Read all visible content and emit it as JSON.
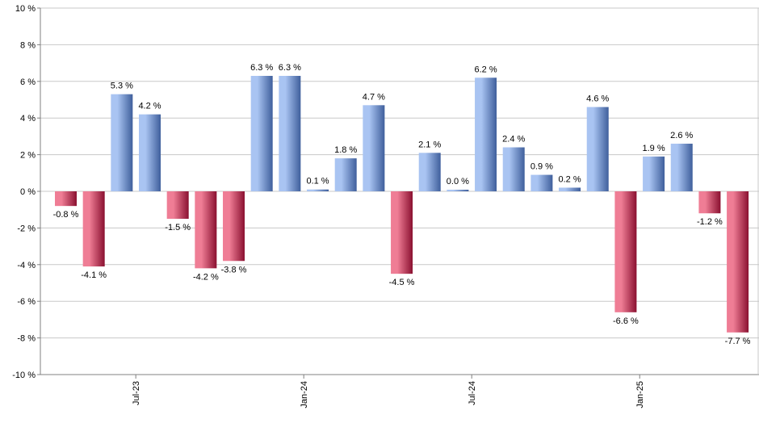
{
  "chart_data": {
    "type": "bar",
    "title": "",
    "xlabel": "",
    "ylabel": "",
    "ylim": [
      -10,
      10
    ],
    "y_ticks": [
      {
        "value": 10,
        "label": "10 %"
      },
      {
        "value": 8,
        "label": "8 %"
      },
      {
        "value": 6,
        "label": "6 %"
      },
      {
        "value": 4,
        "label": "4 %"
      },
      {
        "value": 2,
        "label": "2 %"
      },
      {
        "value": 0,
        "label": "0 %"
      },
      {
        "value": -2,
        "label": "-2 %"
      },
      {
        "value": -4,
        "label": "-4 %"
      },
      {
        "value": -6,
        "label": "-6 %"
      },
      {
        "value": -8,
        "label": "-8 %"
      },
      {
        "value": -10,
        "label": "-10 %"
      }
    ],
    "grid": true,
    "x_ticks": [
      {
        "label": "Jul-23",
        "at_index": 3
      },
      {
        "label": "Jan-24",
        "at_index": 9
      },
      {
        "label": "Jul-24",
        "at_index": 15
      },
      {
        "label": "Jan-25",
        "at_index": 21
      }
    ],
    "values": [
      -0.8,
      -4.1,
      5.3,
      4.2,
      -1.5,
      -4.2,
      -3.8,
      6.3,
      6.3,
      0.1,
      1.8,
      4.7,
      -4.5,
      2.1,
      0.0,
      6.2,
      2.4,
      0.9,
      0.2,
      4.6,
      -6.6,
      1.9,
      2.6,
      -1.2,
      -7.7
    ],
    "data_labels": [
      "-0.8 %",
      "-4.1 %",
      "5.3 %",
      "4.2 %",
      "-1.5 %",
      "-4.2 %",
      "-3.8 %",
      "6.3 %",
      "6.3 %",
      "0.1 %",
      "1.8 %",
      "4.7 %",
      "-4.5 %",
      "2.1 %",
      "0.0 %",
      "6.2 %",
      "2.4 %",
      "0.9 %",
      "0.2 %",
      "4.6 %",
      "-6.6 %",
      "1.9 %",
      "2.6 %",
      "-1.2 %",
      "-7.7 %"
    ],
    "colors": {
      "positive_light": "#a9c4f2",
      "positive_dark": "#3f5f9c",
      "negative_light": "#ef7d95",
      "negative_dark": "#8a1030",
      "grid": "#c8c8c8",
      "axis": "#808080"
    }
  }
}
